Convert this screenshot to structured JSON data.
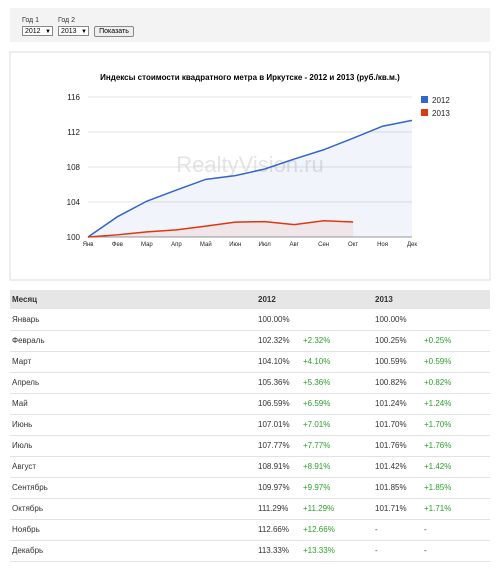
{
  "controls": {
    "year1_label": "Год 1",
    "year1_value": "2012",
    "year2_label": "Год 2",
    "year2_value": "2013",
    "button": "Показать"
  },
  "chart_data": {
    "type": "line",
    "title": "Индексы стоимости квадратного метра в Иркутске - 2012 и 2013 (руб./кв.м.)",
    "watermark": "RealtyVision.ru",
    "categories": [
      "Янв",
      "Фев",
      "Мар",
      "Апр",
      "Май",
      "Июн",
      "Июл",
      "Авг",
      "Сен",
      "Окт",
      "Ноя",
      "Дек"
    ],
    "series": [
      {
        "name": "2012",
        "color": "#3366cc",
        "values": [
          100,
          102.32,
          104.1,
          105.36,
          106.59,
          107.01,
          107.77,
          108.91,
          109.97,
          111.29,
          112.66,
          113.33
        ]
      },
      {
        "name": "2013",
        "color": "#dc3912",
        "values": [
          100,
          100.25,
          100.59,
          100.82,
          101.24,
          101.7,
          101.76,
          101.42,
          101.85,
          101.71,
          null,
          null
        ]
      }
    ],
    "ylim": [
      100,
      116
    ],
    "yticks": [
      100,
      104,
      108,
      112,
      116
    ],
    "grid": true,
    "legend": "right"
  },
  "table": {
    "header": [
      "Месяц",
      "2012",
      "2013"
    ],
    "rows": [
      {
        "month": "Январь",
        "y1": "100.00%",
        "y2": "100.00%"
      },
      {
        "month": "Февраль",
        "y1": "102.32%",
        "d1": "+2.32%",
        "y2": "100.25%",
        "d2": "+0.25%"
      },
      {
        "month": "Март",
        "y1": "104.10%",
        "d1": "+4.10%",
        "y2": "100.59%",
        "d2": "+0.59%"
      },
      {
        "month": "Апрель",
        "y1": "105.36%",
        "d1": "+5.36%",
        "y2": "100.82%",
        "d2": "+0.82%"
      },
      {
        "month": "Май",
        "y1": "106.59%",
        "d1": "+6.59%",
        "y2": "101.24%",
        "d2": "+1.24%"
      },
      {
        "month": "Июнь",
        "y1": "107.01%",
        "d1": "+7.01%",
        "y2": "101.70%",
        "d2": "+1.70%"
      },
      {
        "month": "Июль",
        "y1": "107.77%",
        "d1": "+7.77%",
        "y2": "101.76%",
        "d2": "+1.76%"
      },
      {
        "month": "Август",
        "y1": "108.91%",
        "d1": "+8.91%",
        "y2": "101.42%",
        "d2": "+1.42%"
      },
      {
        "month": "Сентябрь",
        "y1": "109.97%",
        "d1": "+9.97%",
        "y2": "101.85%",
        "d2": "+1.85%"
      },
      {
        "month": "Октябрь",
        "y1": "111.29%",
        "d1": "+11.29%",
        "y2": "101.71%",
        "d2": "+1.71%"
      },
      {
        "month": "Ноябрь",
        "y1": "112.66%",
        "d1": "+12.66%",
        "y2": "-",
        "d2": "-"
      },
      {
        "month": "Декабрь",
        "y1": "113.33%",
        "d1": "+13.33%",
        "y2": "-",
        "d2": "-"
      }
    ]
  }
}
